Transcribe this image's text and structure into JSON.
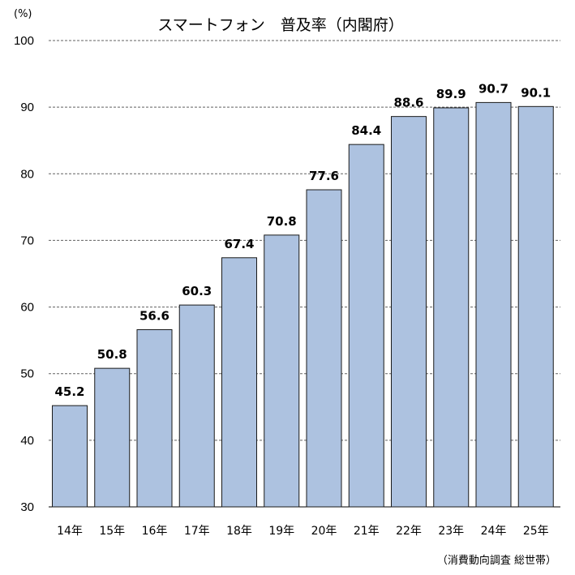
{
  "chart_data": {
    "type": "bar",
    "title": "スマートフォン　普及率（内閣府）",
    "ylabel": "(%)",
    "source": "（消費動向調査 総世帯）",
    "categories": [
      "14年",
      "15年",
      "16年",
      "17年",
      "18年",
      "19年",
      "20年",
      "21年",
      "22年",
      "23年",
      "24年",
      "25年"
    ],
    "values": [
      45.2,
      50.8,
      56.6,
      60.3,
      67.4,
      70.8,
      77.6,
      84.4,
      88.6,
      89.9,
      90.7,
      90.1
    ],
    "value_labels": [
      "45.2",
      "50.8",
      "56.6",
      "60.3",
      "67.4",
      "70.8",
      "77.6",
      "84.4",
      "88.6",
      "89.9",
      "90.7",
      "90.1"
    ],
    "ylim": [
      30,
      100
    ],
    "yticks": [
      30,
      40,
      50,
      60,
      70,
      80,
      90,
      100
    ],
    "grid": true,
    "legend": "none",
    "bar_color": "#adc2e0",
    "bar_edge_color": "#1a1a1a"
  }
}
